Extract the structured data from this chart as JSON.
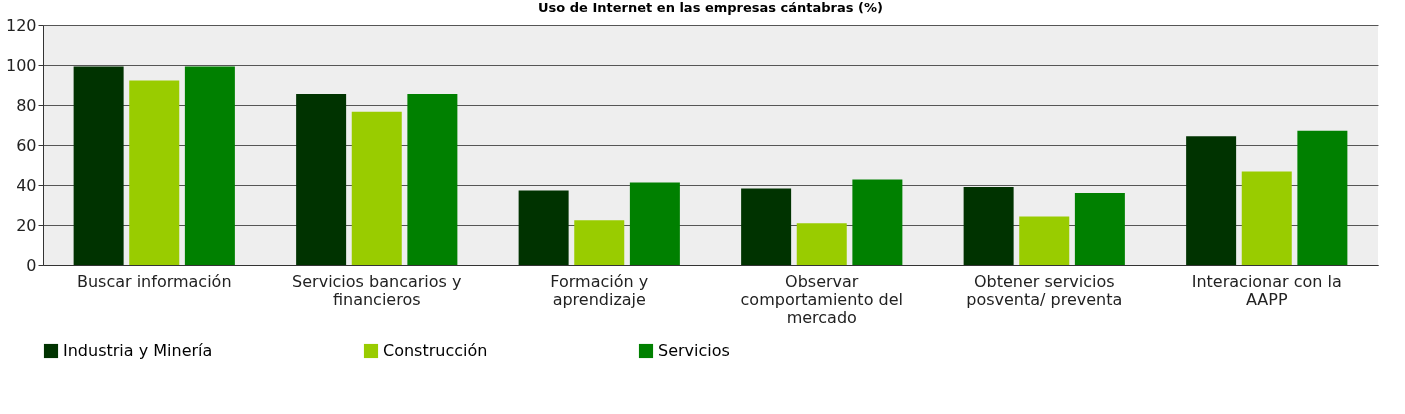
{
  "chart_data": {
    "type": "bar",
    "title": "Uso de Internet en las empresas cántabras (%)",
    "categories": [
      "Buscar información",
      "Servicios bancarios y financieros",
      "Formación y aprendizaje",
      "Observar comportamiento del mercado",
      "Obtener servicios posventa/ preventa",
      "Interacionar con la AAPP"
    ],
    "series": [
      {
        "name": "Industria y Minería",
        "color": "#003300",
        "values": [
          99.2,
          85.5,
          37.3,
          38.2,
          39.0,
          64.4
        ]
      },
      {
        "name": "Construcción",
        "color": "#99cc00",
        "values": [
          92.3,
          76.6,
          22.4,
          20.9,
          24.2,
          46.7
        ]
      },
      {
        "name": "Servicios",
        "color": "#008000",
        "values": [
          99.2,
          85.5,
          41.3,
          42.7,
          36.0,
          67.1
        ]
      }
    ],
    "ylim": [
      0,
      120
    ],
    "yticks": [
      0,
      20,
      40,
      60,
      80,
      100,
      120
    ],
    "grid": "y",
    "legend": "bottom"
  }
}
